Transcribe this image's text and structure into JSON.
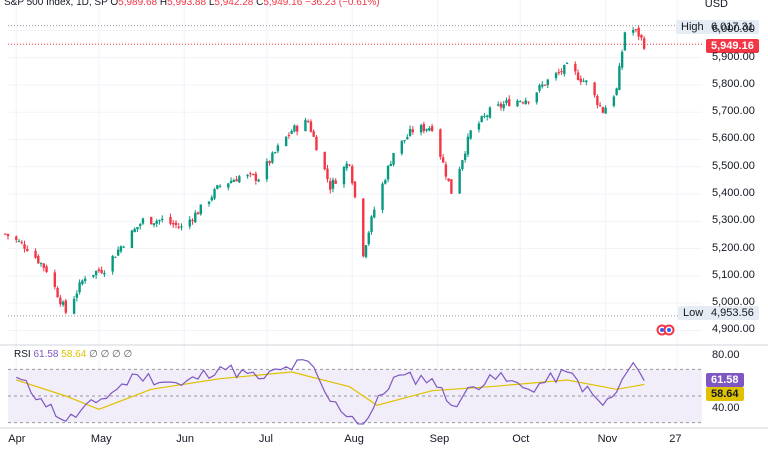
{
  "header": {
    "symbol": "S&P 500 Index, 1D, SP",
    "open_label": "O",
    "open": "5,989.68",
    "high_label": "H",
    "high": "5,993.88",
    "low_label": "L",
    "low": "5,942.28",
    "close_label": "C",
    "close": "5,949.16",
    "change": "−36.23 (−0.61%)",
    "currency": "USD"
  },
  "price_tags": {
    "high_label": "High",
    "high_value": "6,017.31",
    "last_value": "5,949.16",
    "low_label": "Low",
    "low_value": "4,953.56"
  },
  "rsi": {
    "label": "RSI",
    "value": "61.58",
    "ma": "58.64",
    "extra": "∅ ∅ ∅ ∅",
    "tag_value": "61.58",
    "tag_ma": "58.64"
  },
  "colors": {
    "up": "#089981",
    "down": "#f23645",
    "rsi": "#7e57c2",
    "rsi_ma": "#e0c200",
    "band": "#f1edf9"
  },
  "chart_data": [
    {
      "type": "candlestick",
      "y_tick_labels": [
        "6,000.00",
        "5,900.00",
        "5,800.00",
        "5,700.00",
        "5,600.00",
        "5,500.00",
        "5,400.00",
        "5,300.00",
        "5,200.00",
        "5,100.00",
        "5,000.00",
        "4,900.00"
      ],
      "y_ticks": [
        6000,
        5900,
        5800,
        5700,
        5600,
        5500,
        5400,
        5300,
        5200,
        5100,
        5000,
        4900
      ],
      "ylim": [
        4865,
        6060
      ],
      "x_tick_labels": [
        "Apr",
        "May",
        "Jun",
        "Jul",
        "Aug",
        "Sep",
        "Oct",
        "Nov",
        "27"
      ],
      "x_ticks": [
        "2024-04-01",
        "2024-05-01",
        "2024-06-01",
        "2024-07-01",
        "2024-08-01",
        "2024-09-01",
        "2024-10-01",
        "2024-11-01",
        "2024-11-27"
      ],
      "xlim": [
        "2024-03-29",
        "2024-12-06"
      ],
      "high": 6017.31,
      "low": 4953.56,
      "last": 5949.16,
      "close_path": [
        [
          "2024-03-28",
          5254
        ],
        [
          "2024-04-05",
          5204
        ],
        [
          "2024-04-12",
          5123
        ],
        [
          "2024-04-19",
          4967
        ],
        [
          "2024-04-26",
          5100
        ],
        [
          "2024-05-03",
          5127
        ],
        [
          "2024-05-10",
          5222
        ],
        [
          "2024-05-17",
          5303
        ],
        [
          "2024-05-24",
          5304
        ],
        [
          "2024-05-31",
          5277
        ],
        [
          "2024-06-07",
          5346
        ],
        [
          "2024-06-14",
          5431
        ],
        [
          "2024-06-21",
          5464
        ],
        [
          "2024-06-28",
          5460
        ],
        [
          "2024-07-05",
          5567
        ],
        [
          "2024-07-10",
          5633
        ],
        [
          "2024-07-16",
          5667
        ],
        [
          "2024-07-24",
          5427
        ],
        [
          "2024-07-31",
          5522
        ],
        [
          "2024-08-05",
          5186
        ],
        [
          "2024-08-09",
          5344
        ],
        [
          "2024-08-16",
          5554
        ],
        [
          "2024-08-23",
          5634
        ],
        [
          "2024-08-30",
          5648
        ],
        [
          "2024-09-06",
          5408
        ],
        [
          "2024-09-13",
          5626
        ],
        [
          "2024-09-20",
          5702
        ],
        [
          "2024-09-27",
          5738
        ],
        [
          "2024-10-04",
          5751
        ],
        [
          "2024-10-11",
          5815
        ],
        [
          "2024-10-18",
          5864
        ],
        [
          "2024-10-25",
          5808
        ],
        [
          "2024-10-31",
          5705
        ],
        [
          "2024-11-05",
          5782
        ],
        [
          "2024-11-08",
          5995
        ],
        [
          "2024-11-11",
          6001
        ],
        [
          "2024-11-13",
          5985
        ],
        [
          "2024-11-15",
          5949
        ]
      ]
    },
    {
      "type": "line",
      "title": "RSI",
      "y_tick_labels": [
        "80.00",
        "40.00"
      ],
      "y_ticks": [
        80,
        40
      ],
      "ylim": [
        29,
        83
      ],
      "band": [
        30,
        70
      ],
      "series": [
        {
          "name": "RSI",
          "values_path": [
            [
              "2024-04-01",
              64
            ],
            [
              "2024-04-10",
              48
            ],
            [
              "2024-04-19",
              31
            ],
            [
              "2024-04-30",
              45
            ],
            [
              "2024-05-15",
              66
            ],
            [
              "2024-05-31",
              58
            ],
            [
              "2024-06-14",
              72
            ],
            [
              "2024-06-28",
              63
            ],
            [
              "2024-07-16",
              76
            ],
            [
              "2024-07-24",
              46
            ],
            [
              "2024-08-05",
              29
            ],
            [
              "2024-08-16",
              64
            ],
            [
              "2024-08-30",
              63
            ],
            [
              "2024-09-06",
              43
            ],
            [
              "2024-09-20",
              66
            ],
            [
              "2024-10-04",
              55
            ],
            [
              "2024-10-18",
              68
            ],
            [
              "2024-10-31",
              43
            ],
            [
              "2024-11-05",
              53
            ],
            [
              "2024-11-11",
              75
            ],
            [
              "2024-11-15",
              61.58
            ]
          ]
        },
        {
          "name": "RSI-based MA",
          "values_path": [
            [
              "2024-04-01",
              62
            ],
            [
              "2024-04-19",
              50
            ],
            [
              "2024-05-01",
              40
            ],
            [
              "2024-05-20",
              55
            ],
            [
              "2024-06-14",
              63
            ],
            [
              "2024-07-10",
              68
            ],
            [
              "2024-07-31",
              57
            ],
            [
              "2024-08-10",
              43
            ],
            [
              "2024-08-30",
              54
            ],
            [
              "2024-09-20",
              57
            ],
            [
              "2024-10-18",
              62
            ],
            [
              "2024-11-05",
              55
            ],
            [
              "2024-11-15",
              58.64
            ]
          ]
        }
      ],
      "x_tick_labels": [
        "Apr",
        "May",
        "Jun",
        "Jul",
        "Aug",
        "Sep",
        "Oct",
        "Nov",
        "27"
      ]
    }
  ]
}
